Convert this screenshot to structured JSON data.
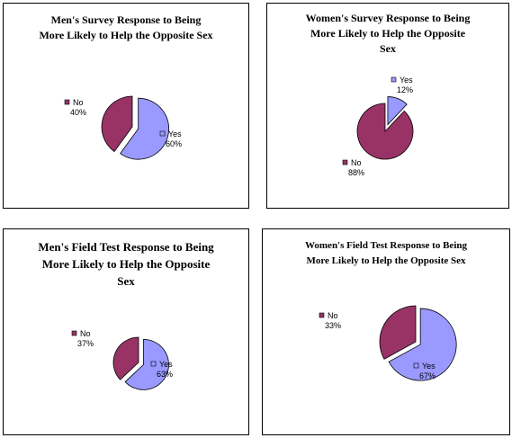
{
  "chart_data": [
    {
      "type": "pie",
      "title_lines": [
        "Men's Survey Response to Being",
        "More Likely to Help the Opposite Sex"
      ],
      "categories": [
        "Yes",
        "No"
      ],
      "values": [
        60,
        40
      ],
      "labels": [
        "60%",
        "40%"
      ],
      "colors": [
        "#9999ff",
        "#993366"
      ],
      "exploded": "Yes"
    },
    {
      "type": "pie",
      "title_lines": [
        "Women's Survey Response to Being",
        "More Likely to Help the Opposite",
        "Sex"
      ],
      "categories": [
        "Yes",
        "No"
      ],
      "values": [
        12,
        88
      ],
      "labels": [
        "12%",
        "88%"
      ],
      "colors": [
        "#9999ff",
        "#993366"
      ],
      "exploded": "Yes"
    },
    {
      "type": "pie",
      "title_lines": [
        "Men's Field Test Response to Being",
        "More Likely to Help the Opposite",
        "Sex"
      ],
      "categories": [
        "Yes",
        "No"
      ],
      "values": [
        63,
        37
      ],
      "labels": [
        "63%",
        "37%"
      ],
      "colors": [
        "#9999ff",
        "#993366"
      ],
      "exploded": "Yes"
    },
    {
      "type": "pie",
      "title_lines": [
        "Women's Field Test Response to Being",
        "More Likely to Help the Opposite Sex"
      ],
      "categories": [
        "Yes",
        "No"
      ],
      "values": [
        67,
        33
      ],
      "labels": [
        "67%",
        "33%"
      ],
      "colors": [
        "#9999ff",
        "#993366"
      ],
      "exploded": "Yes"
    }
  ]
}
